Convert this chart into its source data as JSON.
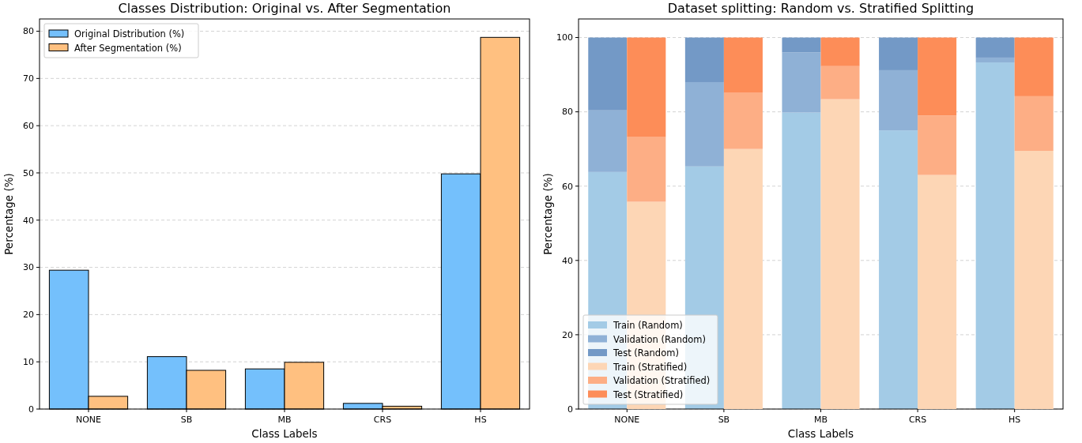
{
  "chart_data": [
    {
      "type": "bar",
      "title": "Classes Distribution: Original vs. After Segmentation",
      "xlabel": "Class Labels",
      "ylabel": "Percentage (%)",
      "categories": [
        "NONE",
        "SB",
        "MB",
        "CRS",
        "HS"
      ],
      "series": [
        {
          "name": "Original Distribution (%)",
          "color": "#74c0fc",
          "values": [
            29.4,
            11.1,
            8.5,
            1.2,
            49.8
          ]
        },
        {
          "name": "After Segmentation (%)",
          "color": "#ffc080",
          "values": [
            2.7,
            8.2,
            9.9,
            0.6,
            78.7
          ]
        }
      ],
      "ylim": [
        0,
        82.6
      ],
      "yticks": [
        0,
        10,
        20,
        30,
        40,
        50,
        60,
        70,
        80
      ],
      "grid": "y",
      "legend": "top left"
    },
    {
      "type": "bar",
      "title": "Dataset splitting: Random vs. Stratified Splitting",
      "xlabel": "Class Labels",
      "ylabel": "Percentage (%)",
      "categories": [
        "NONE",
        "SB",
        "MB",
        "CRS",
        "HS"
      ],
      "stacked": true,
      "series": [
        {
          "name": "Train (Random)",
          "color": "#a3cbe6",
          "values": [
            63.8,
            65.3,
            79.8,
            75.0,
            93.3
          ]
        },
        {
          "name": "Validation (Random)",
          "color": "#8fb1d6",
          "values": [
            16.6,
            22.7,
            16.2,
            16.2,
            1.3
          ]
        },
        {
          "name": "Test (Random)",
          "color": "#7399c6",
          "values": [
            19.6,
            12.0,
            4.0,
            8.8,
            5.4
          ]
        }
      ],
      "ylim": [
        0,
        105
      ],
      "yticks": [
        0,
        20,
        40,
        60,
        80,
        100
      ],
      "grid": "y",
      "legend": "bottom left"
    },
    {
      "type": "bar",
      "categories": [
        "NONE",
        "SB",
        "MB",
        "CRS",
        "HS"
      ],
      "stacked": true,
      "series": [
        {
          "name": "Train (Stratified)",
          "color": "#fdd6b5",
          "values": [
            55.8,
            70.0,
            83.4,
            63.0,
            69.5
          ]
        },
        {
          "name": "Validation (Stratified)",
          "color": "#fdae85",
          "values": [
            17.4,
            15.1,
            8.9,
            16.0,
            14.7
          ]
        },
        {
          "name": "Test (Stratified)",
          "color": "#fd8d58",
          "values": [
            26.8,
            14.9,
            7.7,
            21.0,
            15.8
          ]
        }
      ],
      "ylim": [
        0,
        105
      ],
      "yticks": [
        0,
        20,
        40,
        60,
        80,
        100
      ],
      "tick_labels": false,
      "legend": "bottom left"
    }
  ]
}
